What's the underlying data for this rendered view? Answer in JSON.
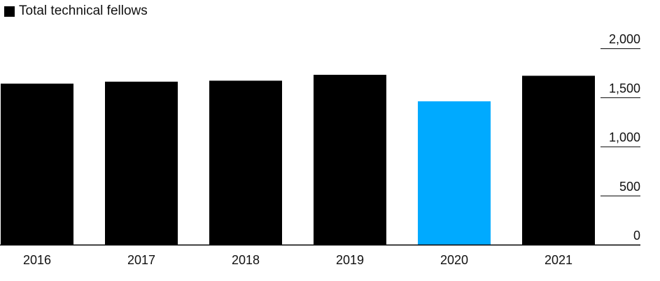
{
  "chart_data": {
    "type": "bar",
    "legend": {
      "label": "Total technical fellows",
      "color": "#000000",
      "placement": "top-left"
    },
    "categories": [
      "2016",
      "2017",
      "2018",
      "2019",
      "2020",
      "2021"
    ],
    "series": [
      {
        "name": "Total technical fellows",
        "values": [
          1640,
          1660,
          1670,
          1730,
          1460,
          1720
        ]
      }
    ],
    "bar_colors": [
      "#000000",
      "#000000",
      "#000000",
      "#000000",
      "#00aaff",
      "#000000"
    ],
    "y_ticks": [
      0,
      500,
      1000,
      1500,
      2000
    ],
    "y_tick_labels": [
      "0",
      "500",
      "1,000",
      "1,500",
      "2,000"
    ],
    "ylim": [
      0,
      2150
    ],
    "y_axis_side": "right",
    "grid": false
  }
}
